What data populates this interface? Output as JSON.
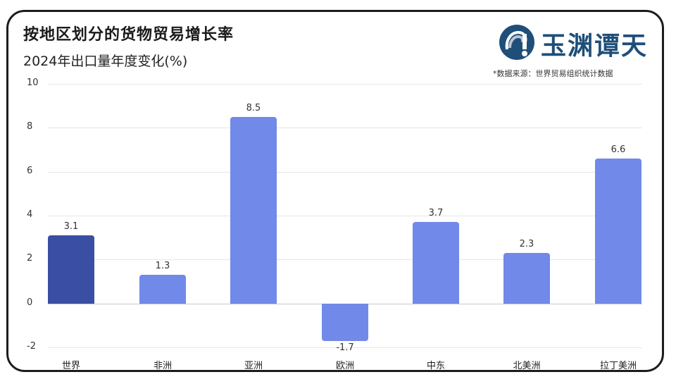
{
  "header": {
    "title": "按地区划分的货物贸易增长率",
    "subtitle": "2024年出口量年度变化(%)"
  },
  "logo": {
    "text": "玉渊谭天",
    "icon": "globe-logo-icon",
    "color": "#1f4e79"
  },
  "source_note": "*数据来源：世界贸易组织统计数据",
  "colors": {
    "highlight_bar": "#3a4fa3",
    "regular_bar": "#7189e8"
  },
  "chart_data": {
    "type": "bar",
    "title": "按地区划分的货物贸易增长率",
    "subtitle": "2024年出口量年度变化(%)",
    "categories": [
      "世界",
      "非洲",
      "亚洲",
      "欧洲",
      "中东",
      "北美洲",
      "拉丁美洲"
    ],
    "values": [
      3.1,
      1.3,
      8.5,
      -1.7,
      3.7,
      2.3,
      6.6
    ],
    "value_labels": [
      "3.1",
      "1.3",
      "8.5",
      "-1.7",
      "3.7",
      "2.3",
      "6.6"
    ],
    "xlabel": "",
    "ylabel": "",
    "ylim": [
      -2,
      10
    ],
    "yticks": [
      "10",
      "8",
      "6",
      "4",
      "2",
      "0",
      "-2"
    ],
    "grid": true,
    "legend": null,
    "source": "*数据来源：世界贸易组织统计数据"
  }
}
